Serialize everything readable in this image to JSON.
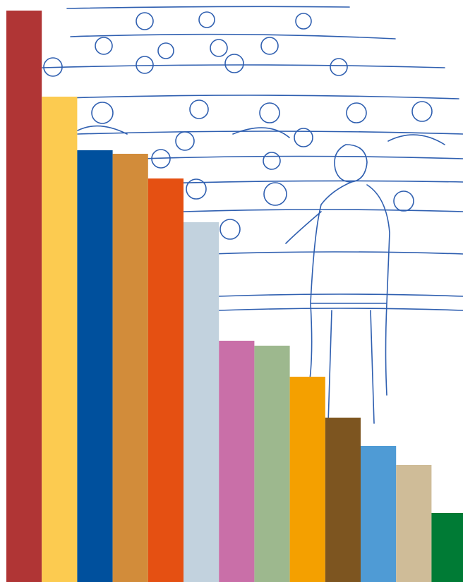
{
  "chart_data": {
    "type": "bar",
    "categories": [
      null,
      null,
      null,
      null,
      null,
      null,
      null,
      null,
      null,
      null,
      null,
      null,
      null
    ],
    "values": [
      810,
      688,
      612,
      607,
      572,
      510,
      342,
      335,
      291,
      233,
      193,
      166,
      98
    ],
    "colors": [
      "#b03535",
      "#fccb50",
      "#00509d",
      "#d28c3a",
      "#e55012",
      "#c2d2de",
      "#c96fa8",
      "#9db88e",
      "#f4a000",
      "#7d5520",
      "#4f9bd5",
      "#cfbc98",
      "#007b35"
    ],
    "ylim": [
      0,
      810
    ]
  }
}
